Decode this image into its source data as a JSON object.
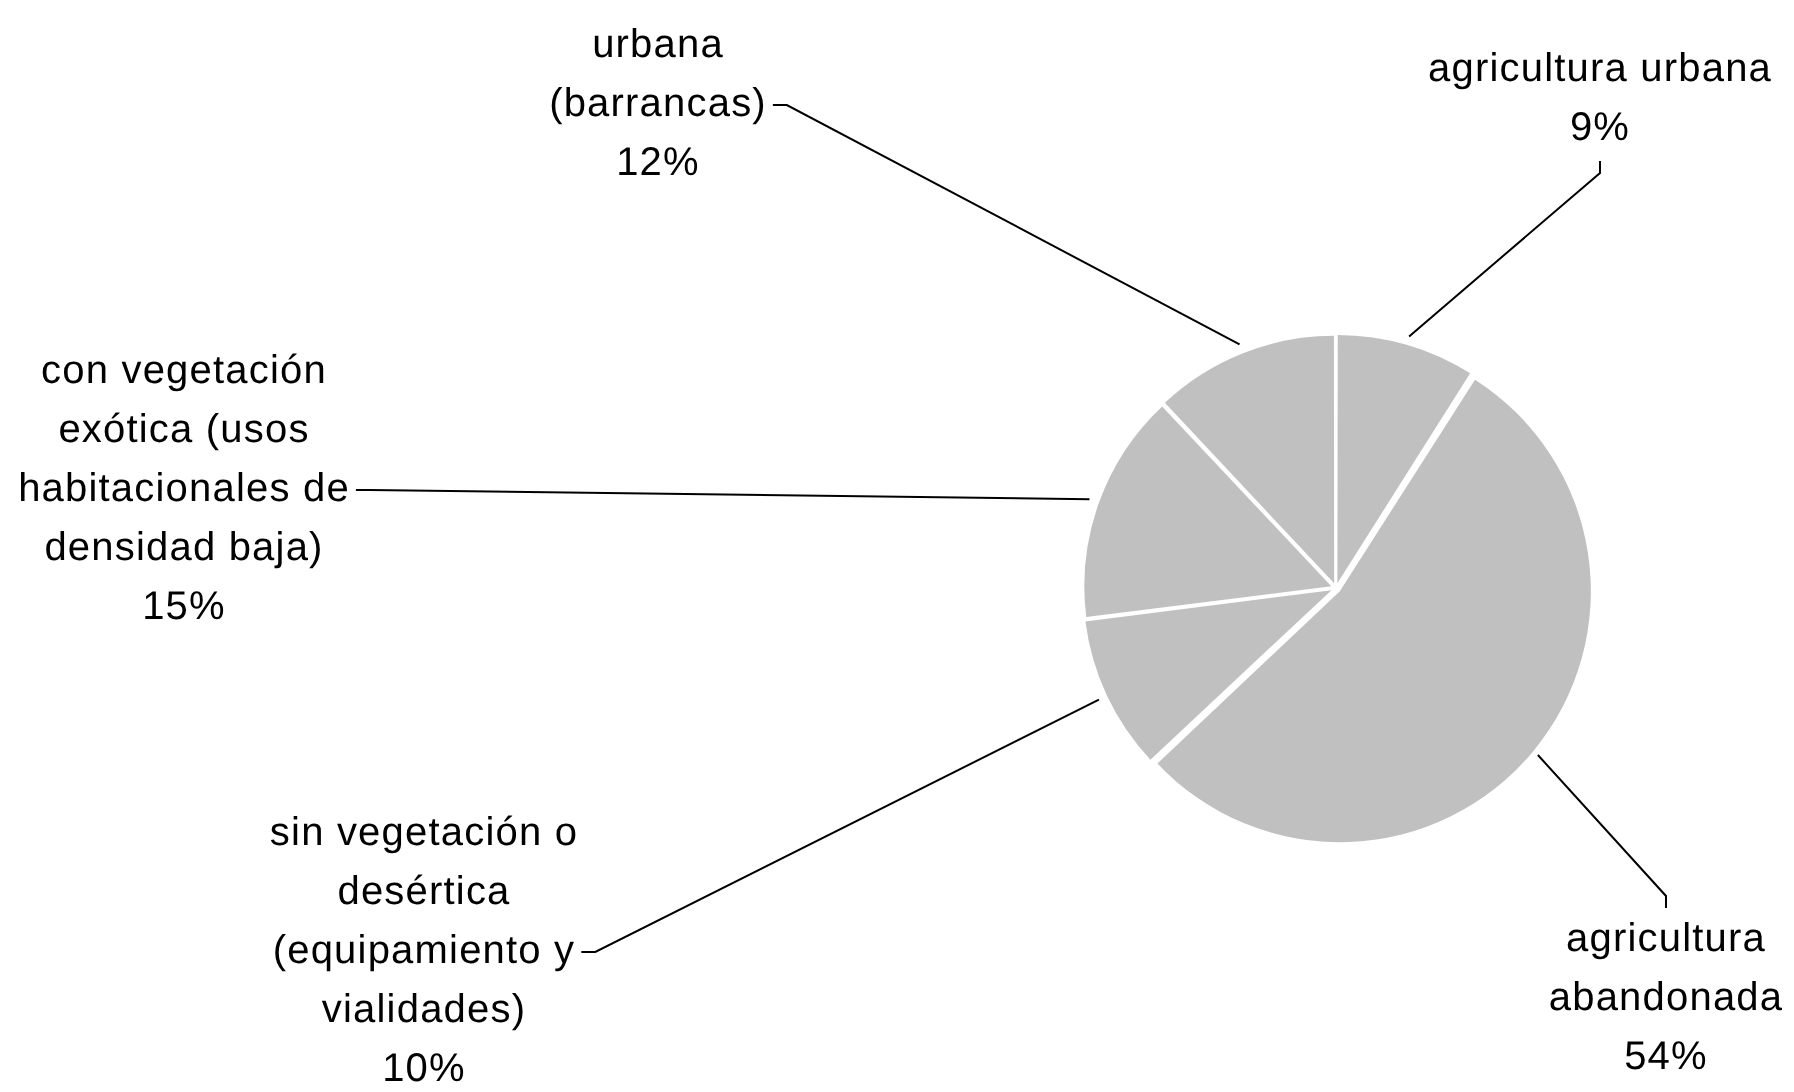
{
  "chart_data": {
    "type": "pie",
    "categories": [
      "agricultura urbana",
      "agricultura abandonada",
      "sin vegetación o desértica (equipamiento y vialidades)",
      "con vegetación exótica (usos habitacionales de densidad baja)",
      "urbana (barrancas)"
    ],
    "values": [
      9,
      54,
      10,
      15,
      12
    ],
    "value_labels": [
      "9%",
      "54%",
      "10%",
      "15%",
      "12%"
    ],
    "colors": [
      "#c0c0c0",
      "#c0c0c0",
      "#c0c0c0",
      "#c0c0c0",
      "#c0c0c0"
    ]
  }
}
